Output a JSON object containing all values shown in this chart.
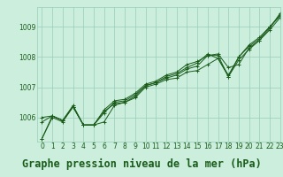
{
  "title": "Graphe pression niveau de la mer (hPa)",
  "bg_color": "#cceedd",
  "plot_bg_color": "#cceedd",
  "grid_color": "#99ccbb",
  "line_color": "#1a5c1a",
  "marker_color": "#1a5c1a",
  "xlim": [
    -0.5,
    23
  ],
  "ylim": [
    1005.2,
    1009.65
  ],
  "yticks": [
    1006,
    1007,
    1008,
    1009
  ],
  "xticks": [
    0,
    1,
    2,
    3,
    4,
    5,
    6,
    7,
    8,
    9,
    10,
    11,
    12,
    13,
    14,
    15,
    16,
    17,
    18,
    19,
    20,
    21,
    22,
    23
  ],
  "series": [
    [
      1005.3,
      1006.0,
      null,
      null,
      null,
      null,
      null,
      null,
      null,
      null,
      null,
      null,
      null,
      null,
      null,
      null,
      null,
      null,
      null,
      null,
      null,
      null,
      null,
      null
    ],
    [
      null,
      1006.0,
      null,
      1006.3,
      null,
      null,
      1006.2,
      1006.4,
      1006.5,
      1006.6,
      1007.0,
      1007.1,
      1007.25,
      1007.3,
      1007.5,
      1007.55,
      1007.75,
      1007.95,
      1007.35,
      1007.9,
      1008.25,
      1008.55,
      1008.9,
      1009.3
    ],
    [
      null,
      null,
      null,
      1006.35,
      1005.75,
      1005.75,
      1005.85,
      1006.4,
      1006.5,
      1006.7,
      1007.05,
      1007.15,
      1007.3,
      1007.4,
      1007.6,
      1007.7,
      1008.05,
      1008.1,
      1007.65,
      1007.75,
      1008.3,
      1008.55,
      1008.95,
      1009.45
    ],
    [
      null,
      null,
      null,
      null,
      1005.75,
      1005.75,
      1006.25,
      1006.55,
      1006.6,
      1006.8,
      1007.1,
      1007.2,
      1007.4,
      1007.5,
      1007.75,
      1007.85,
      1008.05,
      1008.05,
      1007.35,
      1008.0,
      1008.4,
      1008.65,
      1009.0,
      1009.35
    ]
  ],
  "series_full": [
    [
      1005.3,
      1006.0,
      1005.85,
      1006.35,
      1005.75,
      1005.75,
      1006.2,
      1006.45,
      1006.5,
      1006.65,
      1007.0,
      1007.1,
      1007.25,
      1007.3,
      1007.5,
      1007.55,
      1007.75,
      1007.95,
      1007.35,
      1007.9,
      1008.25,
      1008.55,
      1008.9,
      1009.3
    ],
    [
      1005.3,
      1006.05,
      1005.9,
      1006.35,
      1005.75,
      1005.75,
      1005.85,
      1006.4,
      1006.5,
      1006.7,
      1007.05,
      1007.15,
      1007.3,
      1007.4,
      1007.6,
      1007.7,
      1008.05,
      1008.1,
      1007.65,
      1007.75,
      1008.3,
      1008.55,
      1008.95,
      1009.45
    ],
    [
      1005.85,
      1006.05,
      1005.9,
      1006.35,
      1005.75,
      1005.75,
      1006.25,
      1006.55,
      1006.6,
      1006.8,
      1007.1,
      1007.2,
      1007.4,
      1007.5,
      1007.75,
      1007.85,
      1008.05,
      1008.05,
      1007.35,
      1008.0,
      1008.4,
      1008.65,
      1009.0,
      1009.35
    ],
    [
      1006.0,
      1006.05,
      1005.9,
      1006.4,
      1005.75,
      1005.75,
      1006.15,
      1006.5,
      1006.55,
      1006.75,
      1007.05,
      1007.15,
      1007.35,
      1007.45,
      1007.65,
      1007.8,
      1008.1,
      1007.95,
      1007.4,
      1008.0,
      1008.35,
      1008.6,
      1009.0,
      1009.4
    ]
  ],
  "title_fontsize": 8.5,
  "tick_fontsize": 5.5,
  "marker_size": 2.5
}
